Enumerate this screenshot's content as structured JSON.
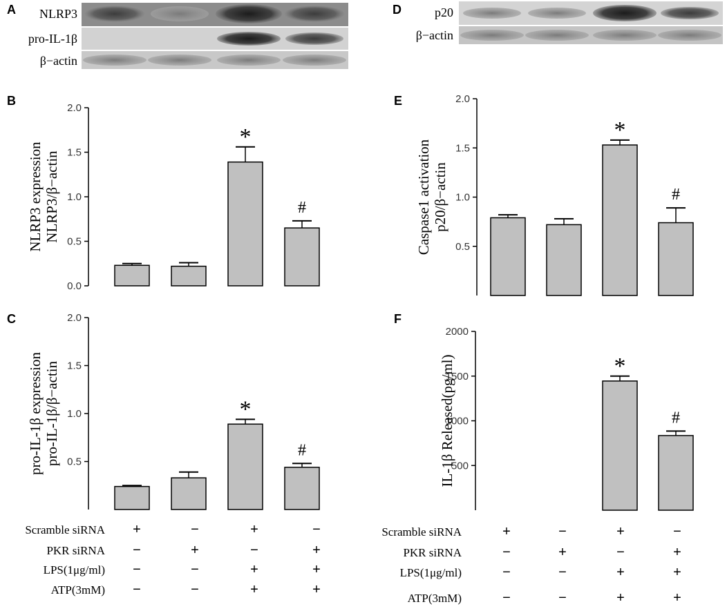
{
  "panels": {
    "A": "A",
    "B": "B",
    "C": "C",
    "D": "D",
    "E": "E",
    "F": "F"
  },
  "blots": {
    "left_labels": [
      "NLRP3",
      "pro-IL-1β",
      "β−actin"
    ],
    "right_labels": [
      "p20",
      "β−actin"
    ]
  },
  "chart_data": [
    {
      "panel": "B",
      "type": "bar",
      "categories": [
        "1",
        "2",
        "3",
        "4"
      ],
      "values": [
        0.23,
        0.22,
        1.39,
        0.65
      ],
      "errors": [
        0.02,
        0.04,
        0.17,
        0.08
      ],
      "annotations": [
        "",
        "",
        "*",
        "#"
      ],
      "ylabel": [
        "NLRP3 expression",
        "NLRP3/β−actin"
      ],
      "ylim": [
        0,
        2.0
      ],
      "yticks": [
        "0.0",
        "0.5",
        "1.0",
        "1.5",
        "2.0"
      ],
      "grid": false
    },
    {
      "panel": "C",
      "type": "bar",
      "categories": [
        "1",
        "2",
        "3",
        "4"
      ],
      "values": [
        0.24,
        0.33,
        0.89,
        0.44
      ],
      "errors": [
        0.01,
        0.06,
        0.05,
        0.04
      ],
      "annotations": [
        "",
        "",
        "*",
        "#"
      ],
      "ylabel": [
        "pro-IL-1β expression",
        "pro-IL-1β/β−actin"
      ],
      "ylim": [
        0,
        2.0
      ],
      "yticks": [
        "0.5",
        "1.0",
        "1.5",
        "2.0"
      ],
      "grid": false
    },
    {
      "panel": "E",
      "type": "bar",
      "categories": [
        "1",
        "2",
        "3",
        "4"
      ],
      "values": [
        0.79,
        0.72,
        1.53,
        0.74
      ],
      "errors": [
        0.03,
        0.06,
        0.05,
        0.15
      ],
      "annotations": [
        "",
        "",
        "*",
        "#"
      ],
      "ylabel": [
        "Caspase1 activation",
        "p20/β−actin"
      ],
      "ylim": [
        0,
        2.0
      ],
      "yticks": [
        "0.5",
        "1.0",
        "1.5",
        "2.0"
      ],
      "grid": false
    },
    {
      "panel": "F",
      "type": "bar",
      "categories": [
        "1",
        "2",
        "3",
        "4"
      ],
      "values": [
        0,
        0,
        1445,
        835
      ],
      "errors": [
        0,
        0,
        55,
        50
      ],
      "annotations": [
        "",
        "",
        "*",
        "#"
      ],
      "ylabel": [
        "IL-1β Released(pg/ml)"
      ],
      "ylim": [
        0,
        2000
      ],
      "yticks": [
        "500",
        "1000",
        "1500",
        "2000"
      ],
      "grid": false
    }
  ],
  "treatment_table": {
    "rows": [
      {
        "label": "Scramble siRNA",
        "marks": [
          "+",
          "−",
          "+",
          "−"
        ]
      },
      {
        "label": "PKR siRNA",
        "marks": [
          "−",
          "+",
          "−",
          "+"
        ]
      },
      {
        "label": "LPS(1μg/ml)",
        "marks": [
          "−",
          "−",
          "+",
          "+"
        ]
      },
      {
        "label": "ATP(3mM)",
        "marks": [
          "−",
          "−",
          "+",
          "+"
        ]
      }
    ]
  }
}
